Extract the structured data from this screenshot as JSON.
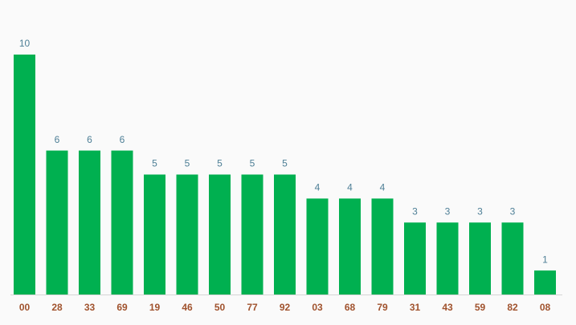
{
  "chart_data": {
    "type": "bar",
    "categories": [
      "00",
      "28",
      "33",
      "69",
      "19",
      "46",
      "50",
      "77",
      "92",
      "03",
      "68",
      "79",
      "31",
      "43",
      "59",
      "82",
      "08"
    ],
    "values": [
      10,
      6,
      6,
      6,
      5,
      5,
      5,
      5,
      5,
      4,
      4,
      4,
      3,
      3,
      3,
      3,
      1
    ],
    "color": "#00b050"
  }
}
